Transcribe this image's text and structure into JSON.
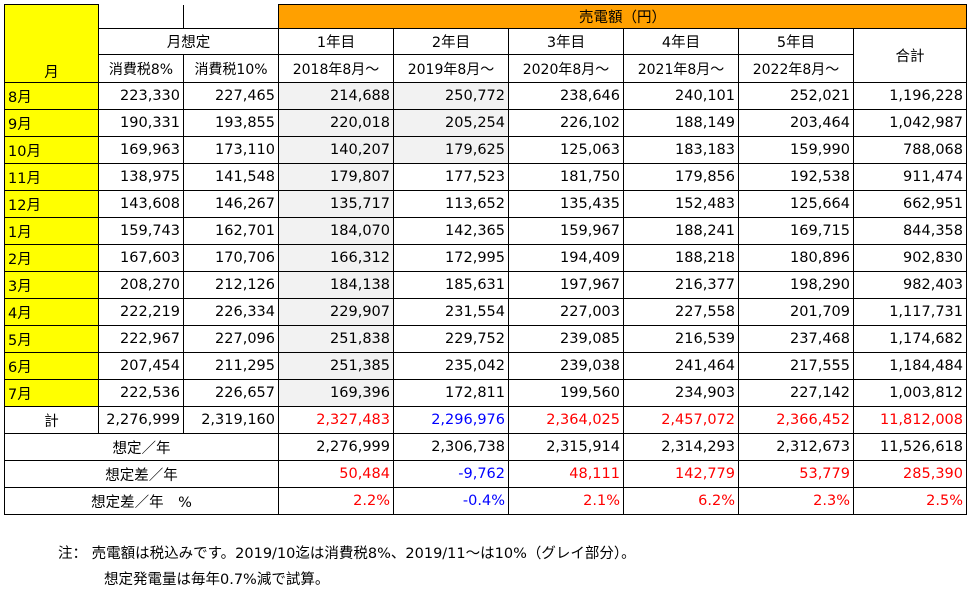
{
  "header": {
    "sales_title": "売電額（円）",
    "month_label": "月",
    "assumption_label": "月想定",
    "tax8": "消費税8%",
    "tax10": "消費税10%",
    "years": [
      "1年目",
      "2年目",
      "3年目",
      "4年目",
      "5年目"
    ],
    "periods": [
      "2018年8月～",
      "2019年8月～",
      "2020年8月～",
      "2021年8月～",
      "2022年8月～"
    ],
    "total_label": "合計"
  },
  "rows": [
    {
      "month": "8月",
      "t8": "223,330",
      "t10": "227,465",
      "y": [
        "214,688",
        "250,772",
        "238,646",
        "240,101",
        "252,021"
      ],
      "total": "1,196,228"
    },
    {
      "month": "9月",
      "t8": "190,331",
      "t10": "193,855",
      "y": [
        "220,018",
        "205,254",
        "226,102",
        "188,149",
        "203,464"
      ],
      "total": "1,042,987"
    },
    {
      "month": "10月",
      "t8": "169,963",
      "t10": "173,110",
      "y": [
        "140,207",
        "179,625",
        "125,063",
        "183,183",
        "159,990"
      ],
      "total": "788,068"
    },
    {
      "month": "11月",
      "t8": "138,975",
      "t10": "141,548",
      "y": [
        "179,807",
        "177,523",
        "181,750",
        "179,856",
        "192,538"
      ],
      "total": "911,474"
    },
    {
      "month": "12月",
      "t8": "143,608",
      "t10": "146,267",
      "y": [
        "135,717",
        "113,652",
        "135,435",
        "152,483",
        "125,664"
      ],
      "total": "662,951"
    },
    {
      "month": "1月",
      "t8": "159,743",
      "t10": "162,701",
      "y": [
        "184,070",
        "142,365",
        "159,967",
        "188,241",
        "169,715"
      ],
      "total": "844,358"
    },
    {
      "month": "2月",
      "t8": "167,603",
      "t10": "170,706",
      "y": [
        "166,312",
        "172,995",
        "194,409",
        "188,218",
        "180,896"
      ],
      "total": "902,830"
    },
    {
      "month": "3月",
      "t8": "208,270",
      "t10": "212,126",
      "y": [
        "184,138",
        "185,631",
        "197,967",
        "216,377",
        "198,290"
      ],
      "total": "982,403"
    },
    {
      "month": "4月",
      "t8": "222,219",
      "t10": "226,334",
      "y": [
        "229,907",
        "231,554",
        "227,003",
        "227,558",
        "201,709"
      ],
      "total": "1,117,731"
    },
    {
      "month": "5月",
      "t8": "222,967",
      "t10": "227,096",
      "y": [
        "251,838",
        "229,752",
        "239,085",
        "216,539",
        "237,468"
      ],
      "total": "1,174,682"
    },
    {
      "month": "6月",
      "t8": "207,454",
      "t10": "211,295",
      "y": [
        "251,385",
        "235,042",
        "239,038",
        "241,464",
        "217,555"
      ],
      "total": "1,184,484"
    },
    {
      "month": "7月",
      "t8": "222,536",
      "t10": "226,657",
      "y": [
        "169,396",
        "172,811",
        "199,560",
        "234,903",
        "227,142"
      ],
      "total": "1,003,812"
    }
  ],
  "summary": {
    "sum_label": "計",
    "sum_t8": "2,276,999",
    "sum_t10": "2,319,160",
    "sum_y": [
      "2,327,483",
      "2,296,976",
      "2,364,025",
      "2,457,072",
      "2,366,452"
    ],
    "sum_total": "11,812,008",
    "assumed_label": "想定／年",
    "assumed_y": [
      "2,276,999",
      "2,306,738",
      "2,315,914",
      "2,314,293",
      "2,312,673"
    ],
    "assumed_total": "11,526,618",
    "diff_label": "想定差／年",
    "diff_y": [
      "50,484",
      "-9,762",
      "48,111",
      "142,779",
      "53,779"
    ],
    "diff_total": "285,390",
    "pct_label": "想定差／年　%",
    "pct_y": [
      "2.2%",
      "-0.4%",
      "2.1%",
      "6.2%",
      "2.3%"
    ],
    "pct_total": "2.5%"
  },
  "notes": {
    "line1": "注：  売電額は税込みです。2019/10迄は消費税8%、2019/11～は10%（グレイ部分）。",
    "line2": "想定発電量は毎年0.7%減で試算。"
  },
  "colors": {
    "header_orange": "#ffa000",
    "month_yellow": "#ffff00",
    "tax8_period_gray": "#f2f2f2",
    "positive_red": "#ff0000",
    "negative_blue": "#0000ff"
  }
}
